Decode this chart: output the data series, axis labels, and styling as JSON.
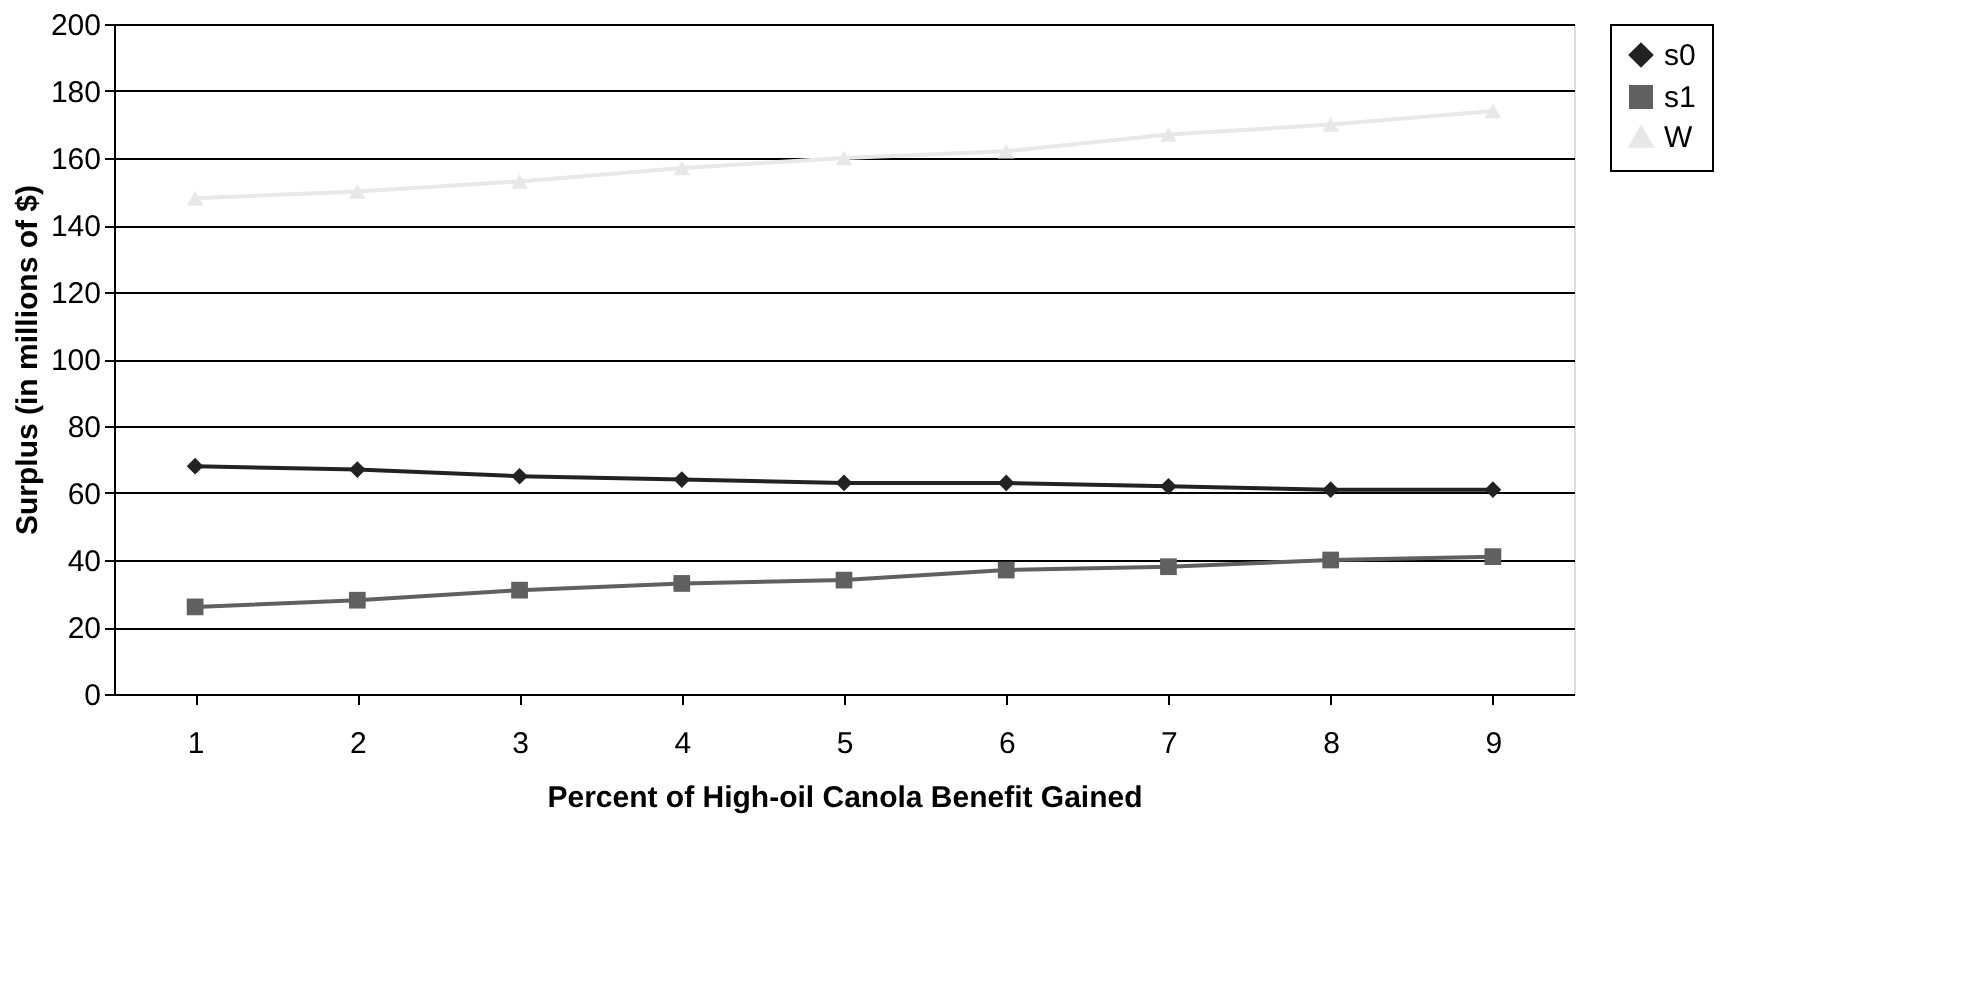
{
  "chart_data": {
    "type": "line",
    "xlabel": "Percent of High-oil Canola Benefit Gained",
    "ylabel": "Surplus (in millions of $)",
    "categories": [
      "1",
      "2",
      "3",
      "4",
      "5",
      "6",
      "7",
      "8",
      "9"
    ],
    "series": [
      {
        "name": "s0",
        "color": "#222222",
        "marker": "diamond",
        "values": [
          68,
          67,
          65,
          64,
          63,
          63,
          62,
          61,
          61
        ]
      },
      {
        "name": "s1",
        "color": "#606060",
        "marker": "square",
        "values": [
          26,
          28,
          31,
          33,
          34,
          37,
          38,
          40,
          41
        ]
      },
      {
        "name": "W",
        "color": "#e8e8e8",
        "marker": "triangle",
        "values": [
          148,
          150,
          153,
          157,
          160,
          162,
          167,
          170,
          174
        ]
      }
    ],
    "ylim": [
      0,
      200
    ],
    "yticks": [
      0,
      20,
      40,
      60,
      80,
      100,
      120,
      140,
      160,
      180,
      200
    ],
    "grid": "y",
    "legend": "right"
  }
}
